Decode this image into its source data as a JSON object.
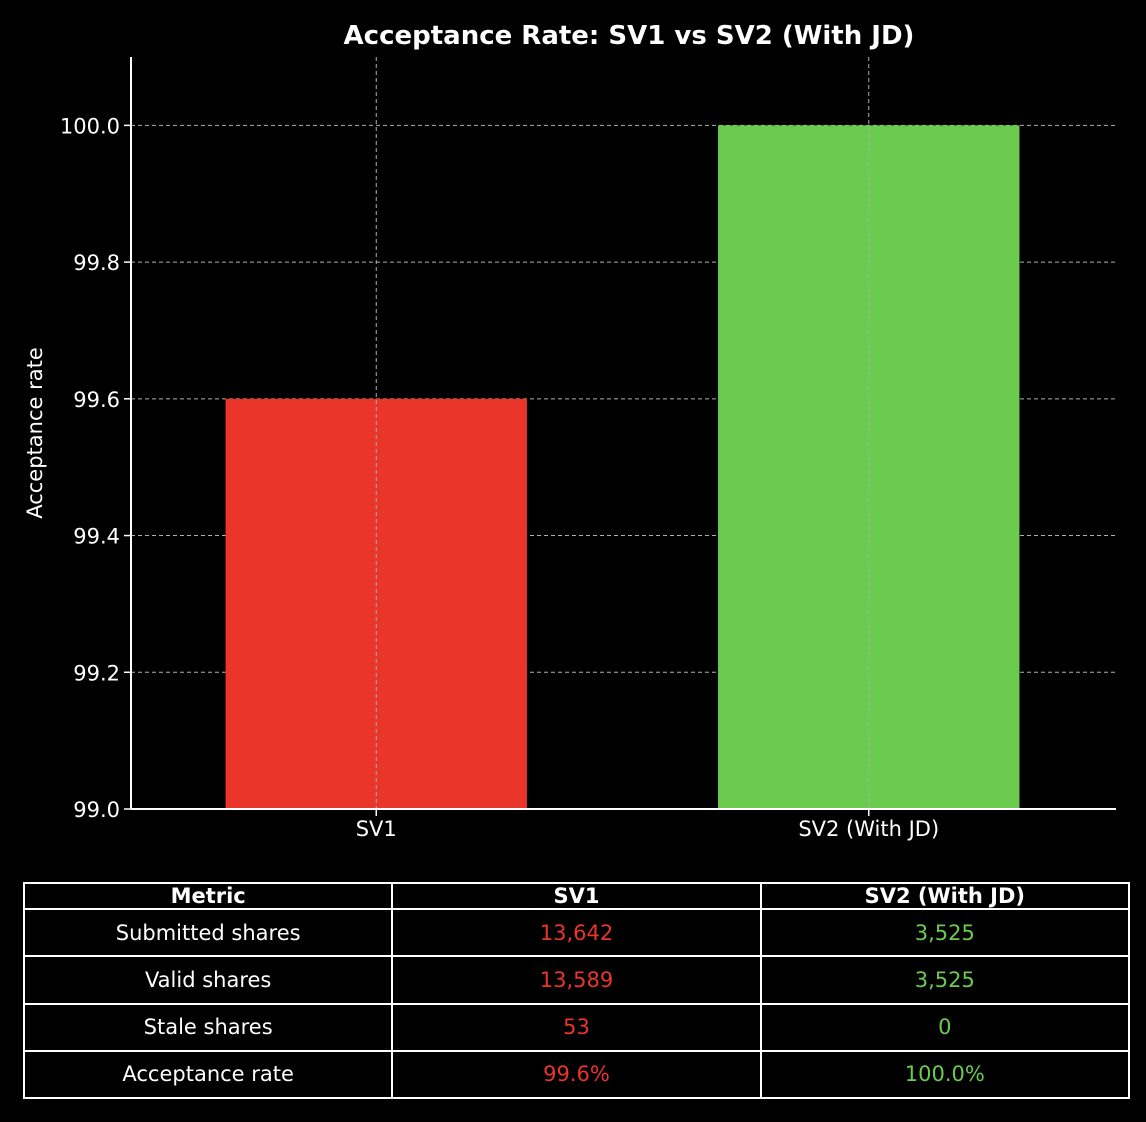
{
  "chart_data": {
    "type": "bar",
    "title": "Acceptance Rate: SV1 vs SV2 (With JD)",
    "categories": [
      "SV1",
      "SV2 (With JD)"
    ],
    "values": [
      99.6,
      100.0
    ],
    "colors": [
      "#e9352a",
      "#6acb4f"
    ],
    "ylabel": "Acceptance rate",
    "xlabel": "",
    "ylim": [
      99.0,
      100.1
    ],
    "yticks": [
      "99.0",
      "99.2",
      "99.4",
      "99.6",
      "99.8",
      "100.0"
    ],
    "grid": true,
    "grid_style": "dashed"
  },
  "table": {
    "headers": [
      "Metric",
      "SV1",
      "SV2 (With JD)"
    ],
    "rows": [
      [
        "Submitted shares",
        "13,642",
        "3,525"
      ],
      [
        "Valid shares",
        "13,589",
        "3,525"
      ],
      [
        "Stale shares",
        "53",
        "0"
      ],
      [
        "Acceptance rate",
        "99.6%",
        "100.0%"
      ]
    ],
    "colors": {
      "sv1": "#e9352a",
      "sv2": "#6acb4f"
    }
  }
}
